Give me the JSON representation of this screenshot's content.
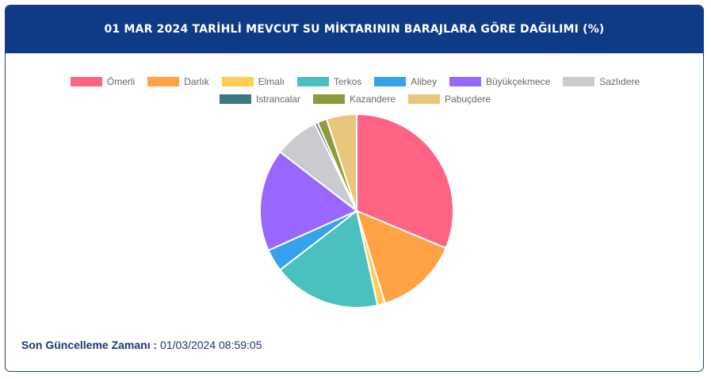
{
  "header": {
    "title": "01 MAR 2024 TARİHLİ MEVCUT SU MİKTARININ BARAJLARA GÖRE DAĞILIMI (%)"
  },
  "footer": {
    "label": "Son Güncelleme Zamanı :",
    "value": "01/03/2024 08:59:05"
  },
  "colors": {
    "header_bg": "#0f3a86",
    "footer_text": "#1e3470"
  },
  "chart_data": {
    "type": "pie",
    "title": "",
    "legend_position": "top",
    "categories": [
      "Ömerli",
      "Darlık",
      "Elmalı",
      "Terkos",
      "Alibey",
      "Büyükçekmece",
      "Sazlıdere",
      "Istrancalar",
      "Kazandere",
      "Pabuçdere"
    ],
    "values": [
      31.6,
      14.1,
      1.3,
      18.2,
      3.8,
      17.3,
      7.5,
      0.5,
      1.6,
      5.1
    ],
    "colors": [
      "#ff6384",
      "#ffa145",
      "#ffcd56",
      "#4bc0c0",
      "#36a2eb",
      "#9966ff",
      "#c9cbcf",
      "#3a7a7f",
      "#8f9a3a",
      "#e8c77c"
    ]
  }
}
